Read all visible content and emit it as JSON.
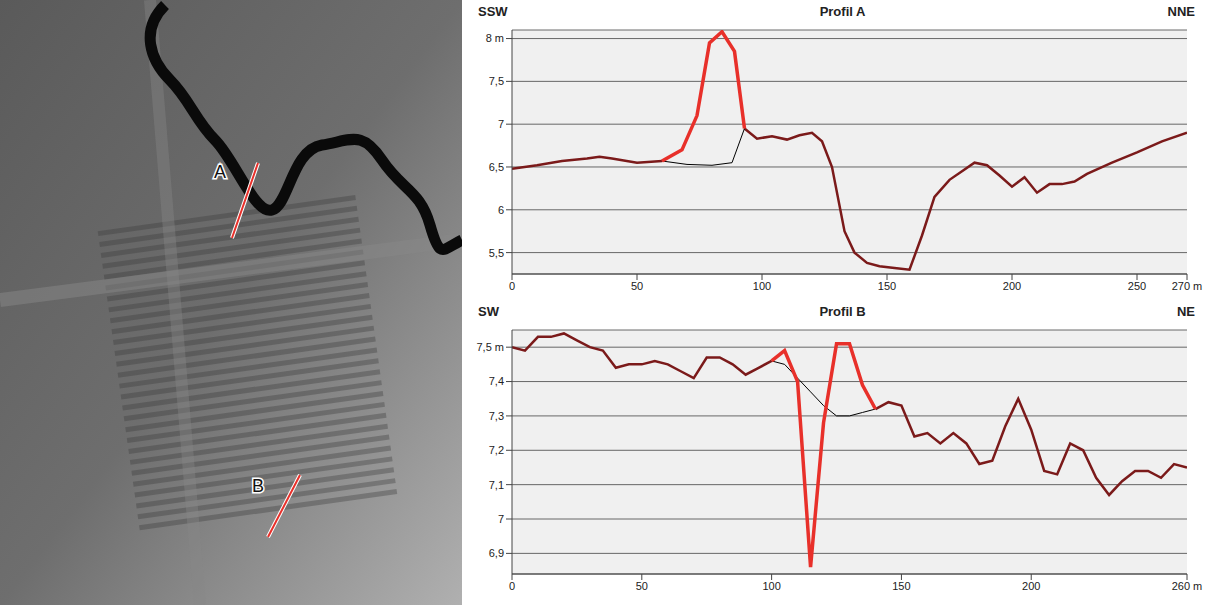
{
  "map": {
    "labels": [
      "A",
      "B"
    ]
  },
  "chart_data": [
    {
      "type": "line",
      "title": "Profil A",
      "annotations": [
        "SSW",
        "NNE"
      ],
      "xlim": [
        0,
        270
      ],
      "xticks": [
        0,
        50,
        100,
        150,
        200,
        250,
        {
          "value": 270,
          "label": "270 m"
        }
      ],
      "ylim": [
        5.25,
        8.1
      ],
      "yticks": [
        {
          "value": 5.5,
          "label": "5,5"
        },
        6,
        {
          "value": 6.5,
          "label": "6,5"
        },
        7,
        {
          "value": 7.5,
          "label": "7,5"
        },
        {
          "value": 8,
          "label": "8 m"
        }
      ],
      "grid": true,
      "series": [
        {
          "color": "#7b1a1a",
          "x": [
            0,
            10,
            20,
            30,
            35,
            40,
            50,
            60,
            76,
            93,
            98,
            104,
            110,
            115,
            120,
            124,
            128,
            133,
            137,
            142,
            147,
            153,
            159,
            164,
            169,
            175,
            180,
            185,
            190,
            195,
            200,
            205,
            210,
            215,
            220,
            225,
            230,
            240,
            250,
            260,
            270
          ],
          "values": [
            6.48,
            6.52,
            6.57,
            6.6,
            6.62,
            6.6,
            6.55,
            6.57,
            null,
            6.95,
            6.83,
            6.86,
            6.82,
            6.87,
            6.9,
            6.8,
            6.5,
            5.75,
            5.5,
            5.38,
            5.34,
            5.32,
            5.3,
            5.7,
            6.15,
            6.35,
            6.45,
            6.55,
            6.52,
            6.4,
            6.27,
            6.38,
            6.2,
            6.3,
            6.3,
            6.33,
            6.42,
            6.55,
            6.67,
            6.8,
            6.9
          ]
        },
        {
          "color": "#000000",
          "x": [
            60,
            70,
            80,
            88,
            93
          ],
          "values": [
            6.57,
            6.53,
            6.52,
            6.55,
            6.95
          ]
        },
        {
          "color": "#e8302a",
          "x": [
            60,
            68,
            74,
            79,
            84,
            89,
            93
          ],
          "values": [
            6.57,
            6.7,
            7.1,
            7.95,
            8.08,
            7.85,
            6.95
          ]
        }
      ]
    },
    {
      "type": "line",
      "title": "Profil B",
      "annotations": [
        "SW",
        "NE"
      ],
      "xlim": [
        0,
        260
      ],
      "xticks": [
        0,
        50,
        100,
        150,
        200,
        {
          "value": 260,
          "label": "260 m"
        }
      ],
      "ylim": [
        6.84,
        7.55
      ],
      "yticks": [
        {
          "value": 6.9,
          "label": "6,9"
        },
        7,
        {
          "value": 7.1,
          "label": "7,1"
        },
        {
          "value": 7.2,
          "label": "7,2"
        },
        {
          "value": 7.3,
          "label": "7,3"
        },
        {
          "value": 7.4,
          "label": "7,4"
        },
        {
          "value": 7.5,
          "label": "7,5 m"
        }
      ],
      "grid": true,
      "series": [
        {
          "color": "#7b1a1a",
          "x": [
            0,
            5,
            10,
            15,
            20,
            25,
            30,
            35,
            40,
            45,
            50,
            55,
            60,
            65,
            70,
            75,
            80,
            85,
            90,
            95,
            100,
            120,
            140,
            145,
            150,
            155,
            160,
            165,
            170,
            175,
            180,
            185,
            190,
            195,
            200,
            205,
            210,
            215,
            220,
            225,
            230,
            235,
            240,
            245,
            250,
            255,
            260
          ],
          "values": [
            7.5,
            7.49,
            7.53,
            7.53,
            7.54,
            7.52,
            7.5,
            7.49,
            7.44,
            7.45,
            7.45,
            7.46,
            7.45,
            7.43,
            7.41,
            7.47,
            7.47,
            7.45,
            7.42,
            7.44,
            7.46,
            null,
            7.32,
            7.34,
            7.33,
            7.24,
            7.25,
            7.22,
            7.25,
            7.22,
            7.16,
            7.17,
            7.27,
            7.35,
            7.26,
            7.14,
            7.13,
            7.22,
            7.2,
            7.12,
            7.07,
            7.11,
            7.14,
            7.14,
            7.12,
            7.16,
            7.15
          ]
        },
        {
          "color": "#000000",
          "x": [
            100,
            105,
            110,
            115,
            120,
            125,
            130,
            135,
            140
          ],
          "values": [
            7.46,
            7.45,
            7.41,
            7.37,
            7.33,
            7.3,
            7.3,
            7.31,
            7.32
          ]
        },
        {
          "color": "#e8302a",
          "x": [
            100,
            105,
            110,
            115,
            120,
            125,
            130,
            135,
            140
          ],
          "values": [
            7.46,
            7.49,
            7.4,
            6.86,
            7.28,
            7.51,
            7.51,
            7.39,
            7.32
          ]
        }
      ]
    }
  ]
}
